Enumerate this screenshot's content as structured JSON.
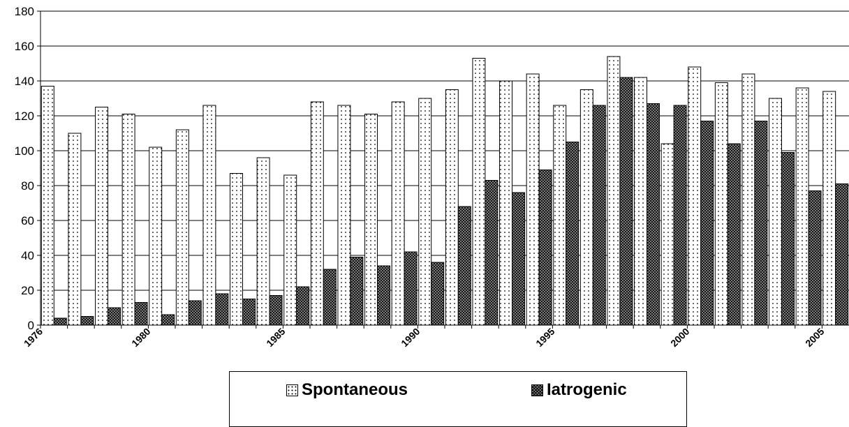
{
  "chart_data": {
    "type": "bar",
    "title": "",
    "xlabel": "",
    "ylabel": "",
    "ylim": [
      0,
      180
    ],
    "yticks": [
      0,
      20,
      40,
      60,
      80,
      100,
      120,
      140,
      160,
      180
    ],
    "grid": true,
    "legend_position": "bottom",
    "categories": [
      1976,
      1977,
      1978,
      1979,
      1980,
      1981,
      1982,
      1983,
      1984,
      1985,
      1986,
      1987,
      1988,
      1989,
      1990,
      1991,
      1992,
      1993,
      1994,
      1995,
      1996,
      1997,
      1998,
      1999,
      2000,
      2001,
      2002,
      2003,
      2004,
      2005
    ],
    "xtick_labels": [
      "1976",
      "1980",
      "1985",
      "1990",
      "1995",
      "2000",
      "2005"
    ],
    "series": [
      {
        "name": "Spontaneous",
        "pattern": "dots",
        "values": [
          137,
          110,
          125,
          121,
          102,
          112,
          126,
          87,
          96,
          86,
          128,
          126,
          121,
          128,
          130,
          135,
          153,
          140,
          144,
          126,
          135,
          154,
          142,
          104,
          148,
          139,
          144,
          130,
          136,
          134
        ]
      },
      {
        "name": "Iatrogenic",
        "pattern": "crosshatch",
        "values": [
          4,
          5,
          10,
          13,
          6,
          14,
          18,
          15,
          17,
          22,
          32,
          39,
          34,
          42,
          36,
          68,
          83,
          76,
          89,
          105,
          126,
          142,
          127,
          126,
          117,
          104,
          117,
          99,
          77,
          81
        ]
      }
    ]
  },
  "legend": {
    "spontaneous_label": "Spontaneous",
    "iatrogenic_label": "Iatrogenic"
  }
}
